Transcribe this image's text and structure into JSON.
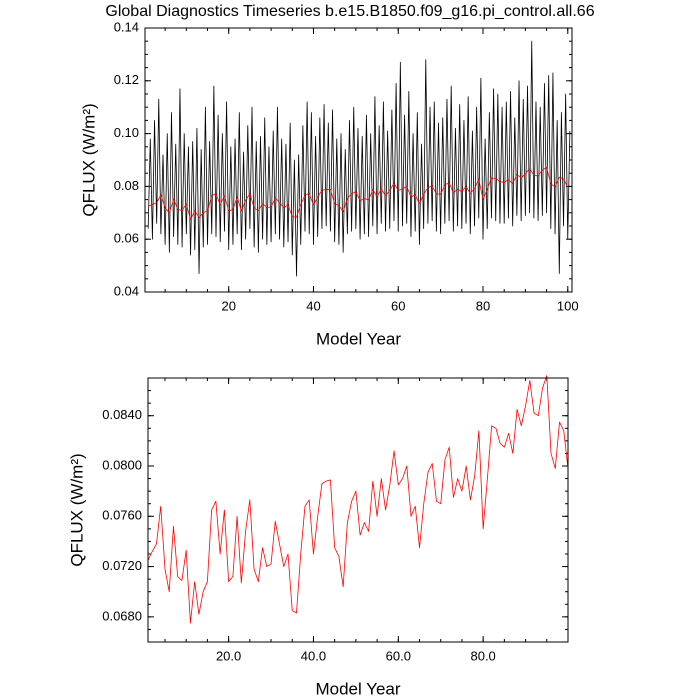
{
  "chart_data": [
    {
      "type": "line",
      "title": "Global Diagnostics Timeseries b.e15.B1850.f09_g16.pi_control.all.66",
      "xlabel": "Model Year",
      "ylabel": "QFLUX (W/m²)",
      "xlim": [
        0.25,
        101
      ],
      "ylim": [
        0.04,
        0.14
      ],
      "xticks": [
        20,
        40,
        60,
        80,
        100
      ],
      "yticks": [
        0.04,
        0.06,
        0.08,
        {
          "value": 0.1,
          "label": "0.10"
        },
        0.12,
        0.14
      ],
      "series": [
        {
          "color": "#000000",
          "x": [
            1,
            1.5,
            2,
            2.5,
            3,
            3.5,
            4,
            4.5,
            5,
            5.5,
            6,
            6.5,
            7,
            7.5,
            8,
            8.5,
            9,
            9.5,
            10,
            10.5,
            11,
            11.5,
            12,
            12.5,
            13,
            13.5,
            14,
            14.5,
            15,
            15.5,
            16,
            16.5,
            17,
            17.5,
            18,
            18.5,
            19,
            19.5,
            20,
            20.5,
            21,
            21.5,
            22,
            22.5,
            23,
            23.5,
            24,
            24.5,
            25,
            25.5,
            26,
            26.5,
            27,
            27.5,
            28,
            28.5,
            29,
            29.5,
            30,
            30.5,
            31,
            31.5,
            32,
            32.5,
            33,
            33.5,
            34,
            34.5,
            35,
            35.5,
            36,
            36.5,
            37,
            37.5,
            38,
            38.5,
            39,
            39.5,
            40,
            40.5,
            41,
            41.5,
            42,
            42.5,
            43,
            43.5,
            44,
            44.5,
            45,
            45.5,
            46,
            46.5,
            47,
            47.5,
            48,
            48.5,
            49,
            49.5,
            50,
            50.5,
            51,
            51.5,
            52,
            52.5,
            53,
            53.5,
            54,
            54.5,
            55,
            55.5,
            56,
            56.5,
            57,
            57.5,
            58,
            58.5,
            59,
            59.5,
            60,
            60.5,
            61,
            61.5,
            62,
            62.5,
            63,
            63.5,
            64,
            64.5,
            65,
            65.5,
            66,
            66.5,
            67,
            67.5,
            68,
            68.5,
            69,
            69.5,
            70,
            70.5,
            71,
            71.5,
            72,
            72.5,
            73,
            73.5,
            74,
            74.5,
            75,
            75.5,
            76,
            76.5,
            77,
            77.5,
            78,
            78.5,
            79,
            79.5,
            80,
            80.5,
            81,
            81.5,
            82,
            82.5,
            83,
            83.5,
            84,
            84.5,
            85,
            85.5,
            86,
            86.5,
            87,
            87.5,
            88,
            88.5,
            89,
            89.5,
            90,
            90.5,
            91,
            91.5,
            92,
            92.5,
            93,
            93.5,
            94,
            94.5,
            95,
            95.5,
            96,
            96.5,
            97,
            97.5,
            98,
            98.5,
            99,
            99.5,
            100,
            100.5
          ],
          "values": [
            0.064,
            0.098,
            0.06,
            0.105,
            0.066,
            0.113,
            0.062,
            0.092,
            0.058,
            0.1,
            0.055,
            0.108,
            0.061,
            0.096,
            0.058,
            0.117,
            0.057,
            0.1,
            0.062,
            0.095,
            0.054,
            0.097,
            0.056,
            0.102,
            0.047,
            0.094,
            0.057,
            0.11,
            0.058,
            0.097,
            0.062,
            0.118,
            0.061,
            0.107,
            0.059,
            0.1,
            0.063,
            0.112,
            0.056,
            0.095,
            0.058,
            0.098,
            0.062,
            0.108,
            0.056,
            0.093,
            0.06,
            0.103,
            0.064,
            0.11,
            0.057,
            0.097,
            0.055,
            0.099,
            0.06,
            0.106,
            0.058,
            0.095,
            0.059,
            0.101,
            0.062,
            0.11,
            0.06,
            0.098,
            0.057,
            0.096,
            0.059,
            0.104,
            0.054,
            0.09,
            0.046,
            0.092,
            0.058,
            0.103,
            0.063,
            0.112,
            0.062,
            0.108,
            0.058,
            0.099,
            0.061,
            0.106,
            0.064,
            0.111,
            0.065,
            0.104,
            0.063,
            0.109,
            0.059,
            0.098,
            0.058,
            0.1,
            0.055,
            0.094,
            0.062,
            0.105,
            0.063,
            0.11,
            0.064,
            0.102,
            0.06,
            0.099,
            0.062,
            0.107,
            0.061,
            0.1,
            0.065,
            0.114,
            0.062,
            0.103,
            0.066,
            0.112,
            0.063,
            0.101,
            0.064,
            0.109,
            0.067,
            0.119,
            0.063,
            0.127,
            0.065,
            0.107,
            0.066,
            0.116,
            0.061,
            0.1,
            0.063,
            0.108,
            0.058,
            0.096,
            0.064,
            0.128,
            0.066,
            0.11,
            0.067,
            0.112,
            0.063,
            0.104,
            0.062,
            0.106,
            0.066,
            0.113,
            0.067,
            0.118,
            0.063,
            0.102,
            0.065,
            0.111,
            0.064,
            0.105,
            0.066,
            0.114,
            0.062,
            0.101,
            0.065,
            0.11,
            0.068,
            0.121,
            0.06,
            0.098,
            0.064,
            0.108,
            0.068,
            0.117,
            0.067,
            0.115,
            0.066,
            0.11,
            0.066,
            0.112,
            0.068,
            0.116,
            0.065,
            0.106,
            0.069,
            0.12,
            0.067,
            0.113,
            0.069,
            0.118,
            0.07,
            0.135,
            0.068,
            0.112,
            0.067,
            0.11,
            0.069,
            0.119,
            0.07,
            0.122,
            0.064,
            0.123,
            0.062,
            0.105,
            0.047,
            0.108,
            0.065,
            0.115,
            0.06,
            0.101
          ]
        },
        {
          "color": "#ff0000",
          "x": [
            1,
            2,
            3,
            4,
            5,
            6,
            7,
            8,
            9,
            10,
            11,
            12,
            13,
            14,
            15,
            16,
            17,
            18,
            19,
            20,
            21,
            22,
            23,
            24,
            25,
            26,
            27,
            28,
            29,
            30,
            31,
            32,
            33,
            34,
            35,
            36,
            37,
            38,
            39,
            40,
            41,
            42,
            43,
            44,
            45,
            46,
            47,
            48,
            49,
            50,
            51,
            52,
            53,
            54,
            55,
            56,
            57,
            58,
            59,
            60,
            61,
            62,
            63,
            64,
            65,
            66,
            67,
            68,
            69,
            70,
            71,
            72,
            73,
            74,
            75,
            76,
            77,
            78,
            79,
            80,
            81,
            82,
            83,
            84,
            85,
            86,
            87,
            88,
            89,
            90,
            91,
            92,
            93,
            94,
            95,
            96,
            97,
            98,
            99,
            100
          ],
          "values": [
            0.0725,
            0.0732,
            0.0738,
            0.0768,
            0.0718,
            0.07,
            0.0752,
            0.0712,
            0.0709,
            0.0733,
            0.0675,
            0.0708,
            0.0682,
            0.07,
            0.0708,
            0.0765,
            0.0772,
            0.073,
            0.0765,
            0.0708,
            0.0712,
            0.076,
            0.0707,
            0.0748,
            0.0773,
            0.0718,
            0.0708,
            0.0735,
            0.072,
            0.0722,
            0.0756,
            0.0738,
            0.072,
            0.073,
            0.0685,
            0.0683,
            0.073,
            0.0768,
            0.0773,
            0.073,
            0.076,
            0.0786,
            0.0788,
            0.0789,
            0.0735,
            0.0728,
            0.0704,
            0.0755,
            0.0772,
            0.078,
            0.0745,
            0.0755,
            0.0748,
            0.0788,
            0.076,
            0.079,
            0.0765,
            0.0785,
            0.0812,
            0.0785,
            0.079,
            0.08,
            0.076,
            0.0768,
            0.0735,
            0.077,
            0.0795,
            0.0802,
            0.0772,
            0.077,
            0.0805,
            0.0815,
            0.0775,
            0.079,
            0.078,
            0.08,
            0.0773,
            0.0792,
            0.0828,
            0.075,
            0.079,
            0.0832,
            0.083,
            0.0818,
            0.0815,
            0.0826,
            0.081,
            0.0845,
            0.0832,
            0.0848,
            0.0868,
            0.0842,
            0.084,
            0.0862,
            0.0872,
            0.081,
            0.0798,
            0.0835,
            0.0828,
            0.0798
          ]
        }
      ]
    },
    {
      "type": "line",
      "xlabel": "Model Year",
      "ylabel": "QFLUX (W/m²)",
      "xlim": [
        1,
        100
      ],
      "ylim": [
        0.066,
        0.087
      ],
      "xticks": [
        {
          "value": 20,
          "label": "20.0"
        },
        {
          "value": 40,
          "label": "40.0"
        },
        {
          "value": 60,
          "label": "60.0"
        },
        {
          "value": 80,
          "label": "80.0"
        }
      ],
      "yticks": [
        {
          "value": 0.068,
          "label": "0.0680"
        },
        {
          "value": 0.072,
          "label": "0.0720"
        },
        {
          "value": 0.076,
          "label": "0.0760"
        },
        {
          "value": 0.08,
          "label": "0.0800"
        },
        {
          "value": 0.084,
          "label": "0.0840"
        }
      ],
      "series": [
        {
          "color": "#ff0000",
          "x": [
            1,
            2,
            3,
            4,
            5,
            6,
            7,
            8,
            9,
            10,
            11,
            12,
            13,
            14,
            15,
            16,
            17,
            18,
            19,
            20,
            21,
            22,
            23,
            24,
            25,
            26,
            27,
            28,
            29,
            30,
            31,
            32,
            33,
            34,
            35,
            36,
            37,
            38,
            39,
            40,
            41,
            42,
            43,
            44,
            45,
            46,
            47,
            48,
            49,
            50,
            51,
            52,
            53,
            54,
            55,
            56,
            57,
            58,
            59,
            60,
            61,
            62,
            63,
            64,
            65,
            66,
            67,
            68,
            69,
            70,
            71,
            72,
            73,
            74,
            75,
            76,
            77,
            78,
            79,
            80,
            81,
            82,
            83,
            84,
            85,
            86,
            87,
            88,
            89,
            90,
            91,
            92,
            93,
            94,
            95,
            96,
            97,
            98,
            99,
            100
          ],
          "values": [
            0.0725,
            0.0732,
            0.0738,
            0.0768,
            0.0718,
            0.07,
            0.0752,
            0.0712,
            0.0709,
            0.0733,
            0.0675,
            0.0708,
            0.0682,
            0.07,
            0.0708,
            0.0765,
            0.0772,
            0.073,
            0.0765,
            0.0708,
            0.0712,
            0.076,
            0.0707,
            0.0748,
            0.0773,
            0.0718,
            0.0708,
            0.0735,
            0.072,
            0.0722,
            0.0756,
            0.0738,
            0.072,
            0.073,
            0.0685,
            0.0683,
            0.073,
            0.0768,
            0.0773,
            0.073,
            0.076,
            0.0786,
            0.0788,
            0.0789,
            0.0735,
            0.0728,
            0.0704,
            0.0755,
            0.0772,
            0.078,
            0.0745,
            0.0755,
            0.0748,
            0.0788,
            0.076,
            0.079,
            0.0765,
            0.0785,
            0.0812,
            0.0785,
            0.079,
            0.08,
            0.076,
            0.0768,
            0.0735,
            0.077,
            0.0795,
            0.0802,
            0.0772,
            0.077,
            0.0805,
            0.0815,
            0.0775,
            0.079,
            0.078,
            0.08,
            0.0773,
            0.0792,
            0.0828,
            0.075,
            0.079,
            0.0832,
            0.083,
            0.0818,
            0.0815,
            0.0826,
            0.081,
            0.0845,
            0.0832,
            0.0848,
            0.0868,
            0.0842,
            0.084,
            0.0862,
            0.0872,
            0.081,
            0.0798,
            0.0835,
            0.0828,
            0.0798
          ]
        }
      ]
    }
  ]
}
